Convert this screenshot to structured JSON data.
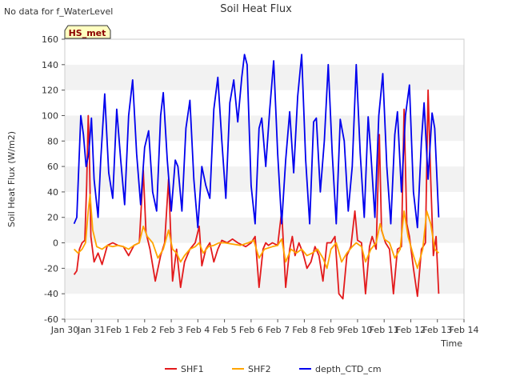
{
  "header": {
    "note": "No data for f_WaterLevel",
    "badge": "HS_met"
  },
  "chart_data": {
    "type": "line",
    "title": "Soil Heat Flux",
    "xlabel": "Time",
    "ylabel": "Soil Heat Flux (W/m2)",
    "ylim": [
      -60,
      160
    ],
    "yticks": [
      -60,
      -40,
      -20,
      0,
      20,
      40,
      60,
      80,
      100,
      120,
      140,
      160
    ],
    "xlim": [
      0,
      15
    ],
    "xtick_labels": [
      "Jan 30",
      "Jan 31",
      "Feb 1",
      "Feb 2",
      "Feb 3",
      "Feb 4",
      "Feb 5",
      "Feb 6",
      "Feb 7",
      "Feb 8",
      "Feb 9",
      "Feb 10",
      "Feb 11",
      "Feb 12",
      "Feb 13",
      "Feb 14"
    ],
    "grid": "horizontal bands",
    "legend": "bottom-center",
    "series": [
      {
        "name": "SHF1",
        "color": "#e31a1c",
        "points": [
          [
            0.35,
            -25
          ],
          [
            0.45,
            -22
          ],
          [
            0.55,
            -5
          ],
          [
            0.65,
            0
          ],
          [
            0.75,
            2
          ],
          [
            0.82,
            45
          ],
          [
            0.88,
            100
          ],
          [
            0.92,
            75
          ],
          [
            0.98,
            5
          ],
          [
            1.1,
            -15
          ],
          [
            1.25,
            -8
          ],
          [
            1.4,
            -17
          ],
          [
            1.6,
            -2
          ],
          [
            1.8,
            0
          ],
          [
            2.0,
            -2
          ],
          [
            2.2,
            -3
          ],
          [
            2.4,
            -10
          ],
          [
            2.6,
            -2
          ],
          [
            2.8,
            0
          ],
          [
            2.95,
            57
          ],
          [
            3.05,
            8
          ],
          [
            3.2,
            -5
          ],
          [
            3.4,
            -30
          ],
          [
            3.6,
            -10
          ],
          [
            3.75,
            0
          ],
          [
            3.9,
            50
          ],
          [
            4.05,
            -30
          ],
          [
            4.2,
            -5
          ],
          [
            4.35,
            -35
          ],
          [
            4.5,
            -15
          ],
          [
            4.7,
            -5
          ],
          [
            4.9,
            0
          ],
          [
            5.05,
            13
          ],
          [
            5.15,
            -18
          ],
          [
            5.3,
            -5
          ],
          [
            5.45,
            0
          ],
          [
            5.6,
            -15
          ],
          [
            5.75,
            -5
          ],
          [
            5.9,
            2
          ],
          [
            6.1,
            0
          ],
          [
            6.3,
            3
          ],
          [
            6.5,
            0
          ],
          [
            6.8,
            -3
          ],
          [
            7.0,
            0
          ],
          [
            7.15,
            5
          ],
          [
            7.3,
            -35
          ],
          [
            7.45,
            -5
          ],
          [
            7.55,
            0
          ],
          [
            7.65,
            -2
          ],
          [
            7.8,
            0
          ],
          [
            8.0,
            -2
          ],
          [
            8.15,
            25
          ],
          [
            8.3,
            -35
          ],
          [
            8.45,
            -5
          ],
          [
            8.55,
            5
          ],
          [
            8.65,
            -10
          ],
          [
            8.8,
            0
          ],
          [
            8.95,
            -8
          ],
          [
            9.1,
            -20
          ],
          [
            9.25,
            -15
          ],
          [
            9.4,
            -3
          ],
          [
            9.55,
            -10
          ],
          [
            9.7,
            -30
          ],
          [
            9.85,
            0
          ],
          [
            10.0,
            0
          ],
          [
            10.15,
            5
          ],
          [
            10.3,
            -40
          ],
          [
            10.45,
            -44
          ],
          [
            10.6,
            -10
          ],
          [
            10.75,
            -3
          ],
          [
            10.9,
            25
          ],
          [
            11.0,
            2
          ],
          [
            11.15,
            0
          ],
          [
            11.3,
            -40
          ],
          [
            11.45,
            -3
          ],
          [
            11.55,
            5
          ],
          [
            11.7,
            -5
          ],
          [
            11.82,
            85
          ],
          [
            11.9,
            10
          ],
          [
            12.05,
            0
          ],
          [
            12.2,
            -5
          ],
          [
            12.35,
            -40
          ],
          [
            12.5,
            -5
          ],
          [
            12.65,
            -3
          ],
          [
            12.75,
            105
          ],
          [
            12.85,
            15
          ],
          [
            12.95,
            5
          ],
          [
            13.1,
            -20
          ],
          [
            13.25,
            -42
          ],
          [
            13.4,
            -5
          ],
          [
            13.55,
            0
          ],
          [
            13.65,
            120
          ],
          [
            13.75,
            50
          ],
          [
            13.85,
            -10
          ],
          [
            13.95,
            5
          ],
          [
            14.05,
            -40
          ]
        ]
      },
      {
        "name": "SHF2",
        "color": "#ffa500",
        "points": [
          [
            0.35,
            -5
          ],
          [
            0.5,
            -8
          ],
          [
            0.65,
            -5
          ],
          [
            0.78,
            0
          ],
          [
            0.88,
            25
          ],
          [
            0.95,
            38
          ],
          [
            1.05,
            10
          ],
          [
            1.2,
            -3
          ],
          [
            1.4,
            -5
          ],
          [
            1.6,
            -2
          ],
          [
            1.8,
            -3
          ],
          [
            2.0,
            -2
          ],
          [
            2.2,
            -3
          ],
          [
            2.4,
            -5
          ],
          [
            2.6,
            -2
          ],
          [
            2.8,
            0
          ],
          [
            2.95,
            13
          ],
          [
            3.1,
            5
          ],
          [
            3.3,
            0
          ],
          [
            3.5,
            -12
          ],
          [
            3.7,
            -5
          ],
          [
            3.9,
            10
          ],
          [
            4.05,
            -5
          ],
          [
            4.2,
            -8
          ],
          [
            4.35,
            -15
          ],
          [
            4.5,
            -10
          ],
          [
            4.7,
            -5
          ],
          [
            4.9,
            -3
          ],
          [
            5.05,
            0
          ],
          [
            5.2,
            -8
          ],
          [
            5.4,
            -3
          ],
          [
            5.6,
            -2
          ],
          [
            5.8,
            0
          ],
          [
            6.0,
            0
          ],
          [
            6.3,
            -1
          ],
          [
            6.6,
            -2
          ],
          [
            6.9,
            0
          ],
          [
            7.1,
            2
          ],
          [
            7.3,
            -12
          ],
          [
            7.5,
            -5
          ],
          [
            7.8,
            -3
          ],
          [
            8.0,
            -2
          ],
          [
            8.15,
            3
          ],
          [
            8.3,
            -15
          ],
          [
            8.5,
            -5
          ],
          [
            8.7,
            -8
          ],
          [
            8.9,
            -5
          ],
          [
            9.1,
            -10
          ],
          [
            9.3,
            -8
          ],
          [
            9.5,
            -5
          ],
          [
            9.7,
            -12
          ],
          [
            9.85,
            -20
          ],
          [
            10.0,
            -5
          ],
          [
            10.2,
            0
          ],
          [
            10.4,
            -15
          ],
          [
            10.6,
            -8
          ],
          [
            10.8,
            -3
          ],
          [
            10.95,
            0
          ],
          [
            11.15,
            -3
          ],
          [
            11.3,
            -15
          ],
          [
            11.5,
            -5
          ],
          [
            11.7,
            0
          ],
          [
            11.85,
            15
          ],
          [
            12.0,
            3
          ],
          [
            12.2,
            0
          ],
          [
            12.4,
            -12
          ],
          [
            12.6,
            -5
          ],
          [
            12.75,
            25
          ],
          [
            12.9,
            5
          ],
          [
            13.1,
            -10
          ],
          [
            13.25,
            -20
          ],
          [
            13.45,
            -5
          ],
          [
            13.6,
            25
          ],
          [
            13.75,
            15
          ],
          [
            13.9,
            -5
          ],
          [
            14.05,
            -8
          ]
        ]
      },
      {
        "name": "depth_CTD_cm",
        "color": "#0000ee",
        "points": [
          [
            0.35,
            15
          ],
          [
            0.45,
            20
          ],
          [
            0.6,
            100
          ],
          [
            0.7,
            85
          ],
          [
            0.8,
            60
          ],
          [
            0.9,
            70
          ],
          [
            1.0,
            98
          ],
          [
            1.1,
            50
          ],
          [
            1.25,
            20
          ],
          [
            1.35,
            65
          ],
          [
            1.5,
            117
          ],
          [
            1.65,
            55
          ],
          [
            1.8,
            35
          ],
          [
            1.95,
            105
          ],
          [
            2.1,
            65
          ],
          [
            2.25,
            30
          ],
          [
            2.4,
            100
          ],
          [
            2.55,
            128
          ],
          [
            2.7,
            70
          ],
          [
            2.85,
            30
          ],
          [
            3.0,
            75
          ],
          [
            3.15,
            88
          ],
          [
            3.3,
            40
          ],
          [
            3.45,
            25
          ],
          [
            3.6,
            100
          ],
          [
            3.7,
            118
          ],
          [
            3.85,
            65
          ],
          [
            4.0,
            25
          ],
          [
            4.15,
            65
          ],
          [
            4.25,
            60
          ],
          [
            4.4,
            25
          ],
          [
            4.55,
            90
          ],
          [
            4.7,
            112
          ],
          [
            4.85,
            50
          ],
          [
            5.0,
            12
          ],
          [
            5.15,
            60
          ],
          [
            5.3,
            45
          ],
          [
            5.45,
            35
          ],
          [
            5.6,
            105
          ],
          [
            5.75,
            130
          ],
          [
            5.9,
            80
          ],
          [
            6.05,
            35
          ],
          [
            6.2,
            110
          ],
          [
            6.35,
            128
          ],
          [
            6.5,
            95
          ],
          [
            6.65,
            130
          ],
          [
            6.75,
            148
          ],
          [
            6.85,
            140
          ],
          [
            7.0,
            45
          ],
          [
            7.15,
            15
          ],
          [
            7.3,
            90
          ],
          [
            7.4,
            98
          ],
          [
            7.55,
            60
          ],
          [
            7.7,
            105
          ],
          [
            7.85,
            143
          ],
          [
            8.0,
            70
          ],
          [
            8.15,
            15
          ],
          [
            8.3,
            65
          ],
          [
            8.45,
            103
          ],
          [
            8.6,
            55
          ],
          [
            8.75,
            115
          ],
          [
            8.9,
            148
          ],
          [
            9.05,
            65
          ],
          [
            9.2,
            15
          ],
          [
            9.35,
            95
          ],
          [
            9.45,
            98
          ],
          [
            9.6,
            40
          ],
          [
            9.75,
            80
          ],
          [
            9.9,
            140
          ],
          [
            10.05,
            70
          ],
          [
            10.2,
            15
          ],
          [
            10.35,
            97
          ],
          [
            10.5,
            80
          ],
          [
            10.65,
            25
          ],
          [
            10.8,
            60
          ],
          [
            10.95,
            140
          ],
          [
            11.1,
            70
          ],
          [
            11.25,
            20
          ],
          [
            11.4,
            99
          ],
          [
            11.5,
            70
          ],
          [
            11.65,
            20
          ],
          [
            11.8,
            100
          ],
          [
            11.95,
            133
          ],
          [
            12.1,
            60
          ],
          [
            12.25,
            15
          ],
          [
            12.4,
            85
          ],
          [
            12.5,
            103
          ],
          [
            12.65,
            40
          ],
          [
            12.8,
            100
          ],
          [
            12.95,
            124
          ],
          [
            13.1,
            40
          ],
          [
            13.25,
            12
          ],
          [
            13.4,
            80
          ],
          [
            13.5,
            110
          ],
          [
            13.65,
            50
          ],
          [
            13.8,
            102
          ],
          [
            13.9,
            90
          ],
          [
            14.05,
            20
          ]
        ]
      }
    ]
  }
}
